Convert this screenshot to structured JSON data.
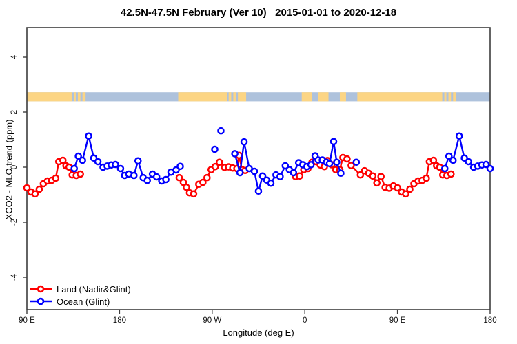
{
  "title": "42.5N-47.5N February (Ver 10)   2015-01-01 to 2020-12-18",
  "legend": {
    "items": [
      {
        "label": "Land (Nadir&Glint)",
        "color": "#ff0000"
      },
      {
        "label": "Ocean (Glint)",
        "color": "#0000ff"
      }
    ]
  },
  "map_strip": {
    "ocean_color": "#aec2dc",
    "land_color": "#fcd584",
    "y_range": [
      2.39,
      2.72
    ],
    "land_segments_lon": [
      [
        90,
        133.5
      ],
      [
        135.5,
        137.5
      ],
      [
        139.5,
        142
      ],
      [
        144,
        147
      ],
      [
        237,
        284.5
      ],
      [
        286,
        288.5
      ],
      [
        290.5,
        293
      ],
      [
        295,
        303
      ],
      [
        357,
        367
      ],
      [
        373,
        383
      ],
      [
        394,
        400
      ],
      [
        411,
        493.5
      ],
      [
        495.5,
        497.5
      ],
      [
        499.5,
        502
      ],
      [
        504,
        507
      ]
    ]
  },
  "chart_data": {
    "type": "line",
    "title": "42.5N-47.5N February (Ver 10)   2015-01-01 to 2020-12-18",
    "xlabel": "Longitude (deg E)",
    "ylabel": "XCO2 - MLO trend (ppm)",
    "xlim": [
      90,
      540
    ],
    "ylim": [
      -5.175,
      5.075
    ],
    "grid": false,
    "legend_position": "bottom-left",
    "x_ticks": [
      {
        "lon": 90,
        "label": "90 E"
      },
      {
        "lon": 180,
        "label": "180"
      },
      {
        "lon": 270,
        "label": "90 W"
      },
      {
        "lon": 360,
        "label": "0"
      },
      {
        "lon": 450,
        "label": "90 E"
      },
      {
        "lon": 540,
        "label": "180"
      }
    ],
    "y_ticks": [
      -4,
      -2,
      0,
      2,
      4
    ],
    "series": [
      {
        "name": "Land (Nadir&Glint)",
        "color": "#ff0000",
        "segments": [
          [
            [
              90,
              -0.75
            ],
            [
              94,
              -0.9
            ],
            [
              98,
              -0.97
            ],
            [
              102,
              -0.8
            ],
            [
              106,
              -0.6
            ],
            [
              110,
              -0.5
            ],
            [
              114,
              -0.48
            ],
            [
              118,
              -0.4
            ],
            [
              121,
              0.2
            ],
            [
              125,
              0.25
            ],
            [
              128,
              0.05
            ],
            [
              131,
              0.0
            ],
            [
              134,
              -0.28
            ],
            [
              138,
              -0.3
            ],
            [
              142,
              -0.25
            ]
          ],
          [
            [
              238,
              -0.38
            ],
            [
              242,
              -0.55
            ],
            [
              245,
              -0.73
            ],
            [
              248,
              -0.93
            ],
            [
              252,
              -0.97
            ],
            [
              257,
              -0.62
            ],
            [
              261,
              -0.55
            ],
            [
              265,
              -0.38
            ],
            [
              269,
              -0.09
            ],
            [
              273,
              0.02
            ],
            [
              277,
              0.18
            ],
            [
              282,
              -0.01
            ],
            [
              286,
              0.01
            ],
            [
              290,
              -0.03
            ],
            [
              294,
              -0.05
            ],
            [
              296,
              0.43
            ],
            [
              299,
              -0.09
            ],
            [
              302,
              -0.12
            ]
          ],
          [
            [
              351,
              -0.34
            ],
            [
              355,
              -0.32
            ],
            [
              359,
              -0.09
            ],
            [
              363,
              -0.05
            ],
            [
              367,
              0.18
            ],
            [
              371,
              0.2
            ],
            [
              375,
              0.08
            ],
            [
              379,
              0.02
            ],
            [
              382,
              0.24
            ],
            [
              386,
              0.09
            ],
            [
              390,
              -0.09
            ],
            [
              394,
              -0.09
            ],
            [
              397,
              0.35
            ],
            [
              401,
              0.3
            ],
            [
              405,
              0.06
            ],
            [
              414,
              -0.28
            ],
            [
              418,
              -0.13
            ],
            [
              422,
              -0.22
            ],
            [
              426,
              -0.32
            ],
            [
              430,
              -0.57
            ],
            [
              434,
              -0.34
            ],
            [
              438,
              -0.73
            ],
            [
              442,
              -0.76
            ],
            [
              446,
              -0.68
            ],
            [
              450,
              -0.75
            ],
            [
              454,
              -0.9
            ],
            [
              458,
              -0.97
            ],
            [
              462,
              -0.8
            ],
            [
              466,
              -0.6
            ],
            [
              470,
              -0.5
            ],
            [
              474,
              -0.48
            ],
            [
              478,
              -0.4
            ],
            [
              481,
              0.2
            ],
            [
              485,
              0.25
            ],
            [
              488,
              0.05
            ],
            [
              491,
              0.0
            ],
            [
              494,
              -0.28
            ],
            [
              498,
              -0.3
            ],
            [
              502,
              -0.25
            ]
          ]
        ],
        "isolated_points": []
      },
      {
        "name": "Ocean (Glint)",
        "color": "#0000ff",
        "segments": [
          [
            [
              136,
              -0.05
            ],
            [
              140,
              0.4
            ],
            [
              144,
              0.25
            ],
            [
              150,
              1.13
            ],
            [
              155,
              0.33
            ],
            [
              159,
              0.2
            ],
            [
              164,
              0.0
            ],
            [
              168,
              0.04
            ],
            [
              172,
              0.08
            ],
            [
              176,
              0.1
            ],
            [
              181,
              -0.05
            ],
            [
              185,
              -0.3
            ],
            [
              189,
              -0.25
            ],
            [
              194,
              -0.3
            ],
            [
              198,
              0.23
            ],
            [
              203,
              -0.38
            ],
            [
              207,
              -0.48
            ],
            [
              212,
              -0.25
            ],
            [
              216,
              -0.35
            ],
            [
              221,
              -0.5
            ],
            [
              225,
              -0.45
            ],
            [
              230,
              -0.18
            ],
            [
              235,
              -0.1
            ],
            [
              239,
              0.03
            ]
          ],
          [
            [
              292,
              0.49
            ],
            [
              297,
              -0.2
            ],
            [
              301,
              0.92
            ],
            [
              306,
              -0.05
            ],
            [
              311,
              -0.15
            ],
            [
              315,
              -0.87
            ],
            [
              319,
              -0.32
            ],
            [
              323,
              -0.47
            ],
            [
              327,
              -0.58
            ],
            [
              332,
              -0.28
            ],
            [
              336,
              -0.34
            ],
            [
              341,
              0.05
            ],
            [
              345,
              -0.09
            ],
            [
              349,
              -0.2
            ],
            [
              354,
              0.16
            ],
            [
              358,
              0.09
            ],
            [
              362,
              0.02
            ],
            [
              366,
              0.09
            ],
            [
              370,
              0.41
            ],
            [
              373,
              0.26
            ],
            [
              377,
              0.26
            ],
            [
              381,
              0.18
            ],
            [
              384,
              0.13
            ],
            [
              388,
              0.93
            ],
            [
              391,
              0.18
            ],
            [
              395,
              -0.22
            ]
          ],
          [
            [
              496,
              -0.05
            ],
            [
              500,
              0.4
            ],
            [
              504,
              0.25
            ],
            [
              510,
              1.13
            ],
            [
              515,
              0.33
            ],
            [
              519,
              0.2
            ],
            [
              524,
              0.0
            ],
            [
              528,
              0.04
            ],
            [
              532,
              0.08
            ],
            [
              536,
              0.1
            ],
            [
              540,
              -0.05
            ]
          ]
        ],
        "isolated_points": [
          [
            272.5,
            0.65
          ],
          [
            278.5,
            1.32
          ],
          [
            410,
            0.18
          ]
        ]
      }
    ]
  }
}
